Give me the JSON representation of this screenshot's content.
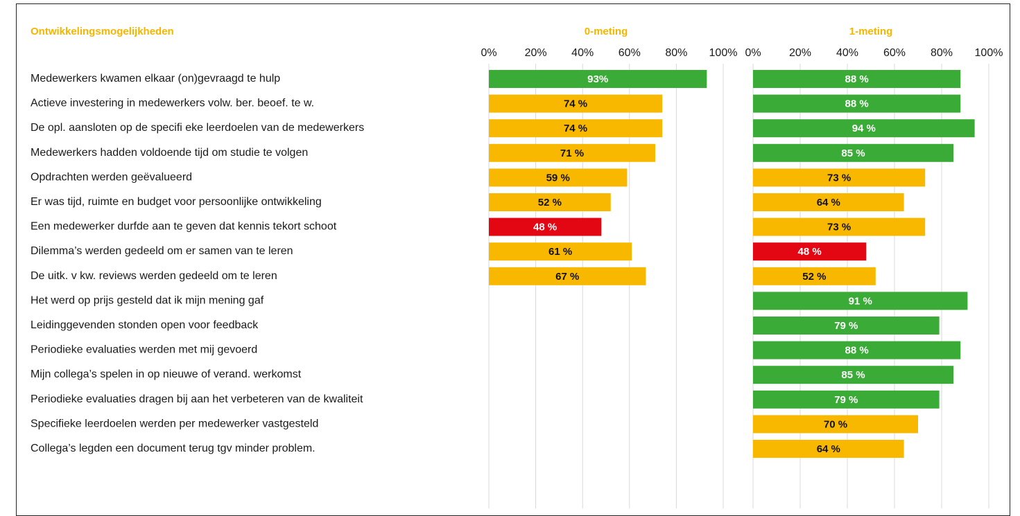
{
  "colors": {
    "heading": "#f7b500",
    "green": "#3aab37",
    "amber": "#f9b800",
    "red": "#e30613",
    "grid": "#d9d9d9",
    "text": "#1a1a1a"
  },
  "header": {
    "section_title": "Ontwikkelingsmogelijkheden"
  },
  "chart_data": [
    {
      "type": "bar",
      "orientation": "horizontal",
      "title": "0-meting",
      "xlim": [
        0,
        100
      ],
      "x_ticks": [
        "0%",
        "20%",
        "40%",
        "60%",
        "80%",
        "100%"
      ],
      "grid": true,
      "categories": [
        "Medewerkers kwamen elkaar (on)gevraagd te hulp",
        "Actieve investering in medewerkers volw. ber. beoef. te w.",
        "De opl. aansloten op de specifi eke leerdoelen van de medewerkers",
        "Medewerkers hadden voldoende tijd om studie te volgen",
        "Opdrachten werden geëvalueerd",
        "Er was tijd, ruimte en budget voor persoonlijke ontwikkeling",
        "Een medewerker durfde aan te geven dat kennis tekort schoot",
        "Dilemma’s werden gedeeld om er samen van te leren",
        "De uitk. v kw. reviews werden gedeeld om te leren"
      ],
      "values": [
        93,
        74,
        74,
        71,
        59,
        52,
        48,
        61,
        67
      ],
      "data_labels": [
        "93%",
        "74 %",
        "74 %",
        "71 %",
        "59 %",
        "52 %",
        "48 %",
        "61 %",
        "67 %"
      ],
      "bar_colors": [
        "green",
        "amber",
        "amber",
        "amber",
        "amber",
        "amber",
        "red",
        "amber",
        "amber"
      ]
    },
    {
      "type": "bar",
      "orientation": "horizontal",
      "title": "1-meting",
      "xlim": [
        0,
        100
      ],
      "x_ticks": [
        "0%",
        "20%",
        "40%",
        "60%",
        "80%",
        "100%"
      ],
      "grid": true,
      "categories": [
        "Medewerkers kwamen elkaar (on)gevraagd te hulp",
        "Actieve investering in medewerkers volw. ber. beoef. te w.",
        "De opl. aansloten op de specifi eke leerdoelen van de medewerkers",
        "Medewerkers hadden voldoende tijd om studie te volgen",
        "Opdrachten werden geëvalueerd",
        "Er was tijd, ruimte en budget voor persoonlijke ontwikkeling",
        "Een medewerker durfde aan te geven dat kennis tekort schoot",
        "Dilemma’s werden gedeeld om er samen van te leren",
        "De uitk. v kw. reviews werden gedeeld om te leren",
        "Het werd op prijs gesteld dat ik mijn mening gaf",
        "Leidinggevenden stonden open voor feedback",
        "Periodieke evaluaties werden met mij gevoerd",
        "Mijn collega’s spelen in op nieuwe of verand. werkomst",
        "Periodieke evaluaties dragen bij aan het verbeteren van de kwaliteit",
        "Specifieke leerdoelen werden per medewerker vastgesteld",
        "Collega’s legden een document terug tgv minder problem."
      ],
      "values": [
        88,
        88,
        94,
        85,
        73,
        64,
        73,
        48,
        52,
        91,
        79,
        88,
        85,
        79,
        70,
        64
      ],
      "data_labels": [
        "88 %",
        "88 %",
        "94 %",
        "85 %",
        "73 %",
        "64 %",
        "73 %",
        "48 %",
        "52 %",
        "91 %",
        "79 %",
        "88 %",
        "85 %",
        "79 %",
        "70 %",
        "64 %"
      ],
      "bar_colors": [
        "green",
        "green",
        "green",
        "green",
        "amber",
        "amber",
        "amber",
        "red",
        "amber",
        "green",
        "green",
        "green",
        "green",
        "green",
        "amber",
        "amber"
      ]
    }
  ]
}
